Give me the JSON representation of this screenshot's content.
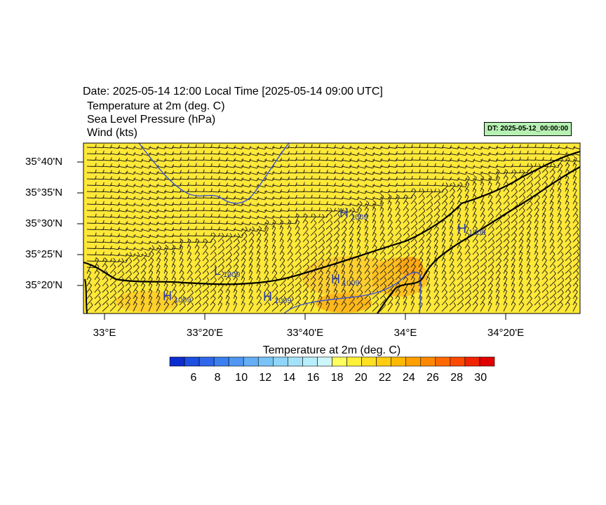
{
  "header": {
    "date_line": "Date: 2025-05-14  12:00 Local Time [2025-05-14  09:00 UTC]",
    "fields": [
      "Temperature at 2m   (deg. C)",
      "Sea Level Pressure   (hPa)",
      "Wind   (kts)"
    ]
  },
  "dt_badge": "DT: 2025-05-12_00:00:00",
  "lat_labels": [
    "35°40'N",
    "35°35'N",
    "35°30'N",
    "35°25'N",
    "35°20'N"
  ],
  "lon_labels": [
    "33°E",
    "33°20'E",
    "33°40'E",
    "34°E",
    "34°20'E"
  ],
  "pressure_centers": [
    {
      "type": "H",
      "value": "1009"
    },
    {
      "type": "H",
      "value": "1009"
    },
    {
      "type": "L",
      "value": "1009"
    },
    {
      "type": "H",
      "value": "1009"
    },
    {
      "type": "H",
      "value": "1009"
    },
    {
      "type": "H",
      "value": "1009"
    }
  ],
  "colorbar": {
    "title": "Temperature at 2m  (deg. C)",
    "tick_labels": [
      "6",
      "8",
      "10",
      "12",
      "14",
      "16",
      "18",
      "20",
      "22",
      "24",
      "26",
      "28",
      "30"
    ],
    "colors": [
      "#0b2ccf",
      "#1d4fe0",
      "#2f66ea",
      "#3b7ff0",
      "#4f97f2",
      "#63aef4",
      "#79c3f6",
      "#8ed5f8",
      "#a3e3fa",
      "#b8eefb",
      "#cdf6fb",
      "#ffff60",
      "#fff038",
      "#ffdf20",
      "#ffcc10",
      "#ffb800",
      "#ffa000",
      "#ff8800",
      "#ff6a00",
      "#ff4800",
      "#f02400",
      "#e00000"
    ]
  },
  "colors": {
    "field_yellow": "#ffe838",
    "field_orange": "#ffb800",
    "isobar": "#3b56c9",
    "coast": "#000000"
  }
}
